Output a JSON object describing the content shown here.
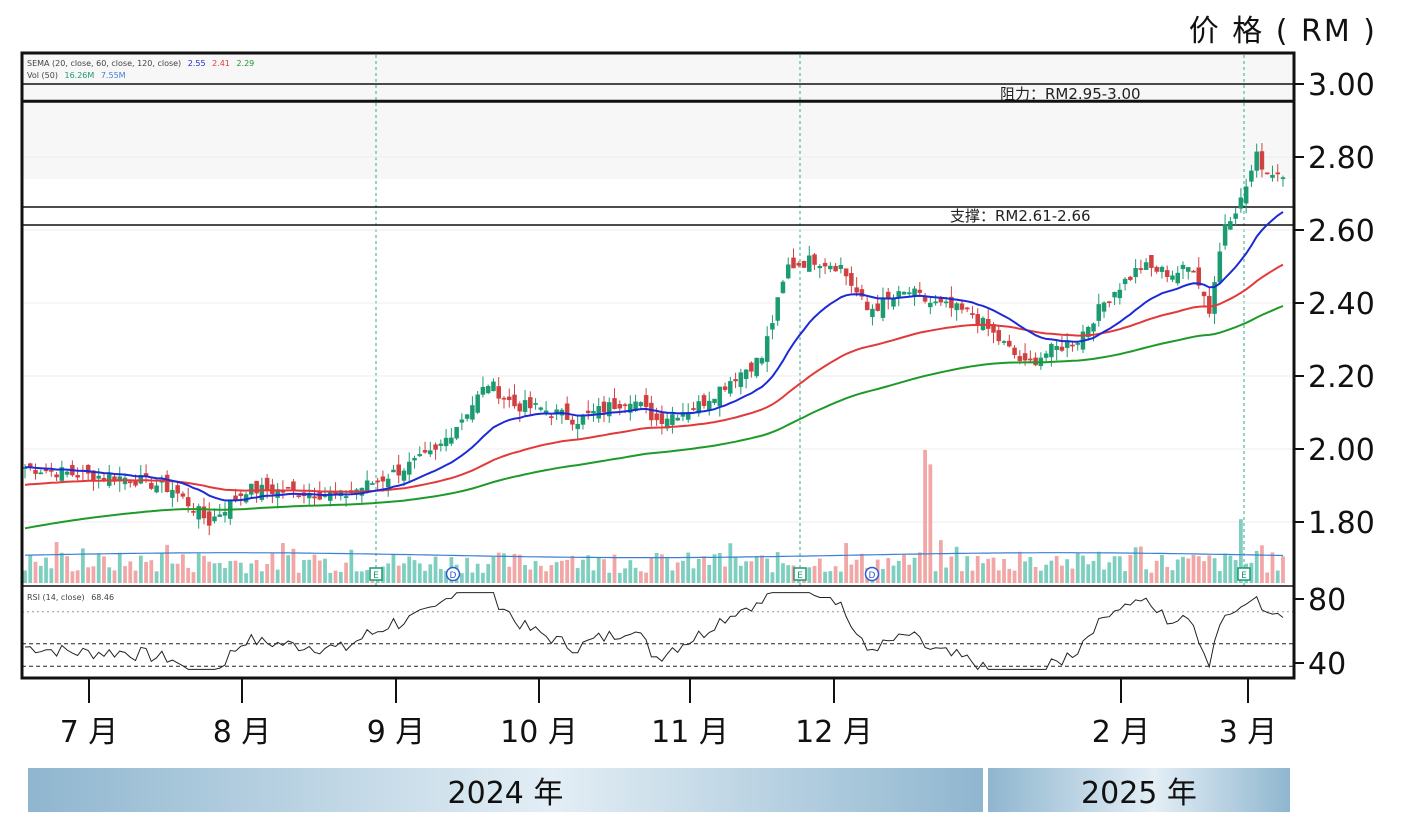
{
  "unit_title": "价 格 ( RM )",
  "legend": {
    "ema_line": "SEMA (20, close, 60, close, 120, close)",
    "ema_v1": "2.55",
    "ema_v2": "2.41",
    "ema_v3": "2.29",
    "vol_label": "Vol (50)",
    "vol_v1": "16.26M",
    "vol_v2": "7.55M",
    "rsi_label": "RSI (14, close)",
    "rsi_value": "68.46"
  },
  "annotations": {
    "resistance": "阻力：RM2.95-3.00",
    "support": "支撑：RM2.61-2.66"
  },
  "colors": {
    "ema20": "#1c2bd6",
    "ema60": "#e23a3a",
    "ema120": "#1f9a2a",
    "up": "#1c9a72",
    "down": "#d04040",
    "vol_up": "#7fcfc0",
    "vol_down": "#f2a7a7",
    "vol_ma": "#3d7fd1",
    "marker": "#1c9a72",
    "marker_d": "#2a5bd6"
  },
  "chart_data": {
    "type": "candlestick",
    "y_axis_labels": [
      "3.00",
      "2.80",
      "2.60",
      "2.40",
      "2.20",
      "2.00",
      "1.80"
    ],
    "ylim": [
      1.65,
      3.1
    ],
    "rsi_axis_labels": [
      "80",
      "40"
    ],
    "rsi_lim": [
      35,
      85
    ],
    "x_axis_labels": [
      "7 月",
      "8 月",
      "9 月",
      "10 月",
      "11 月",
      "12 月",
      "2 月",
      "3 月"
    ],
    "year_labels": [
      "2024 年",
      "2025 年"
    ],
    "resistance_zone": [
      2.95,
      3.0
    ],
    "support_zone": [
      2.61,
      2.66
    ],
    "close_path": {
      "index": [
        0,
        10,
        20,
        28,
        35,
        42,
        55,
        60,
        68,
        78,
        88,
        93,
        98,
        105,
        110,
        115,
        120,
        128,
        135,
        140,
        145,
        150,
        155,
        160,
        168,
        172,
        180,
        185,
        190,
        195,
        200,
        206,
        212,
        218,
        222,
        225,
        228,
        231,
        234,
        236
      ],
      "value": [
        1.95,
        1.93,
        1.92,
        1.89,
        1.8,
        1.89,
        1.88,
        1.87,
        1.92,
        1.99,
        2.18,
        2.12,
        2.11,
        2.08,
        2.11,
        2.14,
        2.08,
        2.12,
        2.2,
        2.25,
        2.5,
        2.52,
        2.5,
        2.38,
        2.43,
        2.4,
        2.37,
        2.3,
        2.23,
        2.27,
        2.3,
        2.42,
        2.5,
        2.48,
        2.5,
        2.38,
        2.62,
        2.68,
        2.8,
        2.76
      ]
    },
    "ema_final": {
      "ema20": 2.55,
      "ema60": 2.41,
      "ema120": 2.29
    },
    "rsi_last": 68.46,
    "volume_spikes": [
      {
        "index": 171,
        "value": 16.26
      },
      {
        "index": 172,
        "value": 14.5
      },
      {
        "index": 231,
        "value": 7.8
      }
    ]
  }
}
